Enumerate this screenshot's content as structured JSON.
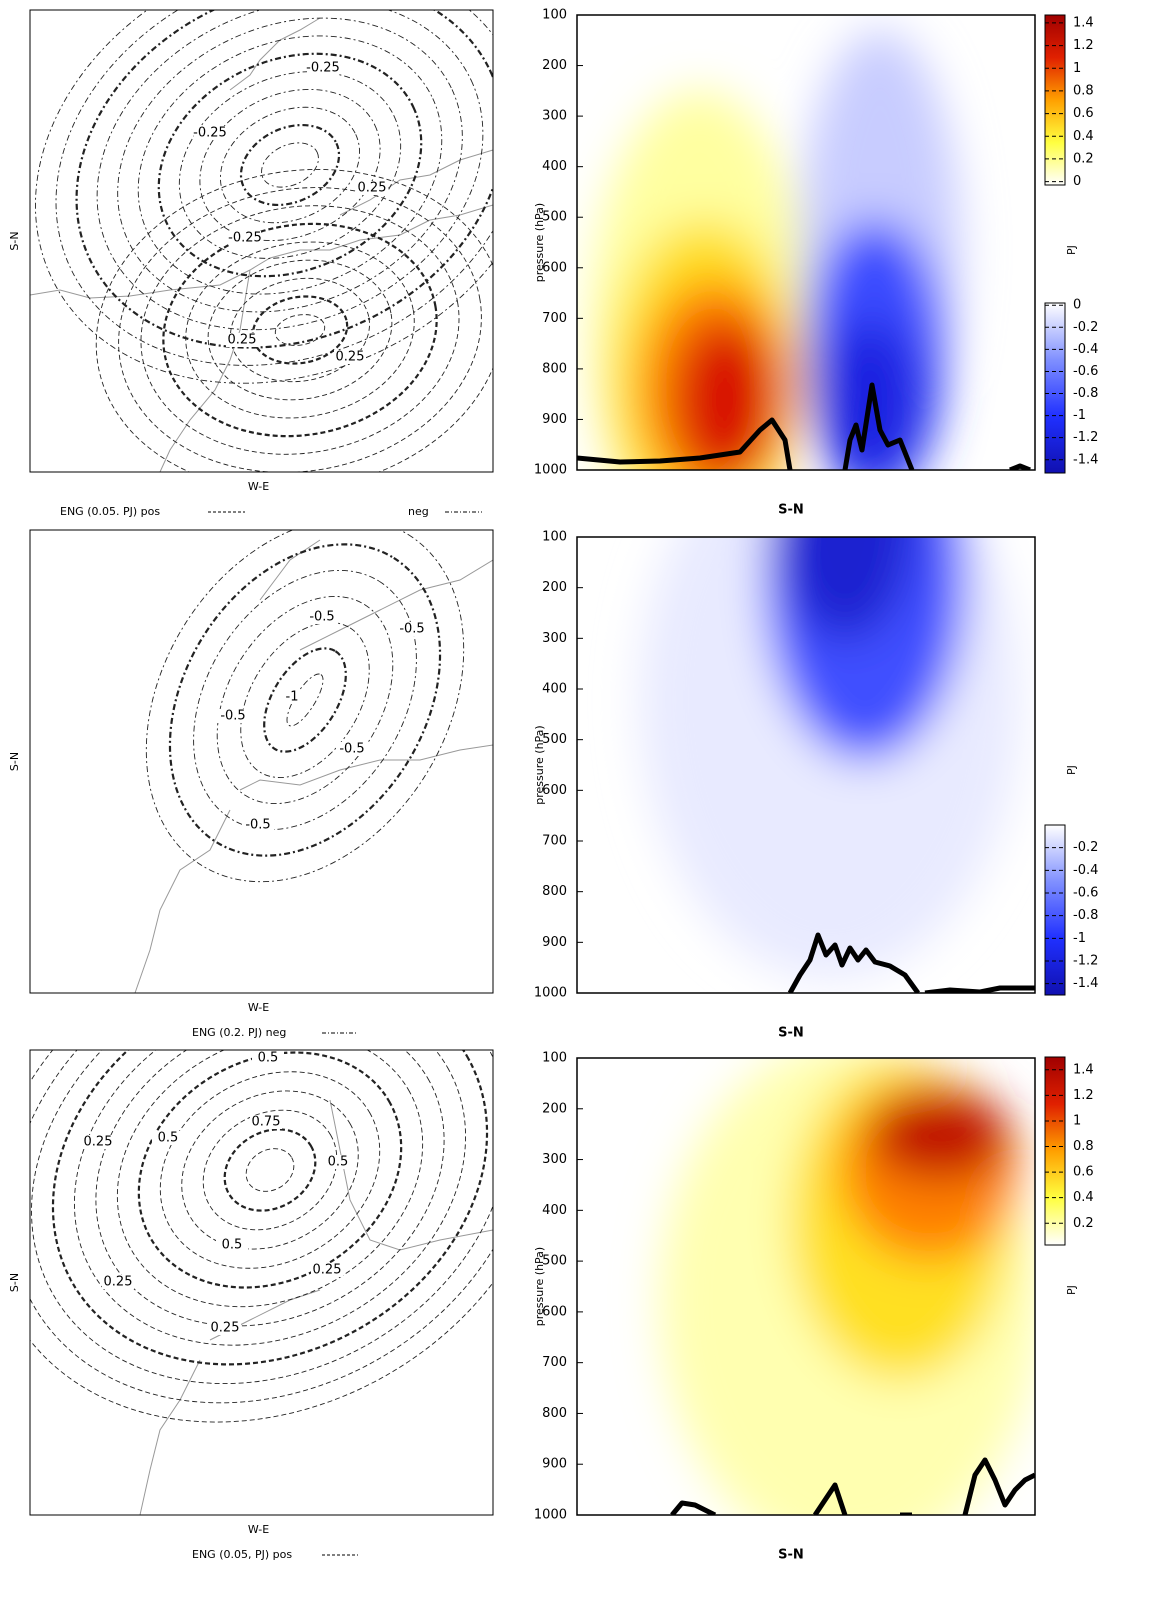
{
  "chart_data": [
    {
      "type": "contour_map",
      "xlabel": "W-E",
      "ylabel": "S-N",
      "contour_labels": [
        "-0.25",
        "-0.25",
        "0.25",
        "-0.25",
        "0.25",
        "0.25"
      ],
      "legend": [
        "ENG (0.05. PJ) pos",
        "neg"
      ]
    },
    {
      "type": "heatmap",
      "xlabel": "S-N",
      "ylabel": "pressure (hPa)",
      "ylim": [
        1000,
        100
      ],
      "yticks": [
        100,
        200,
        300,
        400,
        500,
        600,
        700,
        800,
        900,
        1000
      ],
      "colorbar_label": "PJ",
      "colorbars": [
        {
          "clim": [
            -0.03,
            1.47
          ],
          "ticks": [
            1.4,
            1.2,
            1,
            0.8,
            0.6,
            0.4,
            0.2,
            0
          ],
          "colors": [
            "#ffffff",
            "#ffff40",
            "#ffa000",
            "#e02000",
            "#a00000"
          ]
        },
        {
          "clim": [
            -1.52,
            0.02
          ],
          "ticks": [
            0,
            -0.2,
            -0.4,
            -0.6,
            -0.8,
            -1,
            -1.2,
            -1.4
          ],
          "colors": [
            "#1010b0",
            "#2030ff",
            "#8090ff",
            "#ffffff"
          ]
        }
      ]
    },
    {
      "type": "contour_map",
      "xlabel": "W-E",
      "ylabel": "S-N",
      "contour_labels": [
        "-0.5",
        "-0.5",
        "-0.5",
        "-1",
        "-0.5",
        "-0.5"
      ],
      "legend": [
        "ENG (0.2. PJ) neg"
      ]
    },
    {
      "type": "heatmap",
      "xlabel": "S-N",
      "ylabel": "pressure (hPa)",
      "ylim": [
        1000,
        100
      ],
      "yticks": [
        100,
        200,
        300,
        400,
        500,
        600,
        700,
        800,
        900,
        1000
      ],
      "colorbar_label": "PJ",
      "colorbars": [
        {
          "clim": [
            -1.5,
            0
          ],
          "ticks": [
            -0.2,
            -0.4,
            -0.6,
            -0.8,
            -1,
            -1.2,
            -1.4
          ],
          "colors": [
            "#1010b0",
            "#2030ff",
            "#8090ff",
            "#ffffff"
          ]
        }
      ]
    },
    {
      "type": "contour_map",
      "xlabel": "W-E",
      "ylabel": "S-N",
      "contour_labels": [
        "0.5",
        "0.25",
        "0.5",
        "0.75",
        "0.5",
        "0.5",
        "0.25",
        "0.25",
        "0.25"
      ],
      "legend": [
        "ENG (0.05, PJ) pos"
      ]
    },
    {
      "type": "heatmap",
      "xlabel": "S-N",
      "ylabel": "pressure (hPa)",
      "ylim": [
        1000,
        100
      ],
      "yticks": [
        100,
        200,
        300,
        400,
        500,
        600,
        700,
        800,
        900,
        1000
      ],
      "colorbar_label": "PJ",
      "colorbars": [
        {
          "clim": [
            0.03,
            1.5
          ],
          "ticks": [
            1.4,
            1.2,
            1,
            0.8,
            0.6,
            0.4,
            0.2
          ],
          "colors": [
            "#ffffff",
            "#ffff40",
            "#ffa000",
            "#e02000",
            "#a00000"
          ]
        }
      ]
    }
  ]
}
